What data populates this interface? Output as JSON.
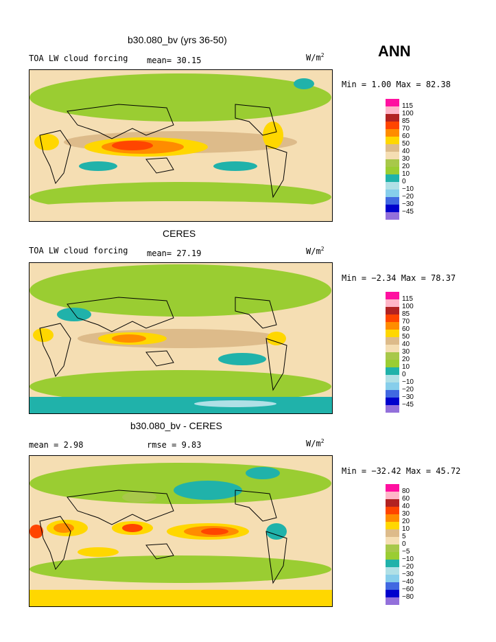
{
  "season": "ANN",
  "units_prefix": "W/m",
  "units_exp": "2",
  "colors": {
    "magenta": "#ff10a0",
    "pink": "#ffb6c8",
    "darkred": "#b22222",
    "orangered": "#ff4500",
    "orange": "#ff8c00",
    "gold": "#ffd700",
    "tan": "#ddbb8a",
    "wheat": "#f5deb3",
    "olive": "#a8c84a",
    "lgreen": "#9acd32",
    "teal": "#20b2aa",
    "lightblue": "#b0e0e6",
    "skyblue": "#87ceeb",
    "blue": "#4169e1",
    "navy": "#0000cd",
    "purple": "#9370db"
  },
  "panels": [
    {
      "title": "b30.080_bv (yrs 36-50)",
      "variable": "TOA LW cloud forcing",
      "stats": "mean=  30.15",
      "minmax": "Min =   1.00 Max =  82.38",
      "legend": [
        "115",
        "100",
        "85",
        "70",
        "60",
        "50",
        "40",
        "30",
        "20",
        "10",
        "0",
        "−10",
        "−20",
        "−30",
        "−45"
      ]
    },
    {
      "title": "CERES",
      "variable": "TOA LW cloud forcing",
      "stats": "mean=  27.19",
      "minmax": "Min =  −2.34 Max =  78.37",
      "legend": [
        "115",
        "100",
        "85",
        "70",
        "60",
        "50",
        "40",
        "30",
        "20",
        "10",
        "0",
        "−10",
        "−20",
        "−30",
        "−45"
      ]
    },
    {
      "title": "b30.080_bv - CERES",
      "mean": "mean =    2.98",
      "rmse": "rmse =    9.83",
      "minmax": "Min = −32.42 Max =  45.72",
      "legend": [
        "80",
        "60",
        "40",
        "30",
        "20",
        "10",
        "5",
        "0",
        "−5",
        "−10",
        "−20",
        "−30",
        "−40",
        "−60",
        "−80"
      ]
    }
  ]
}
